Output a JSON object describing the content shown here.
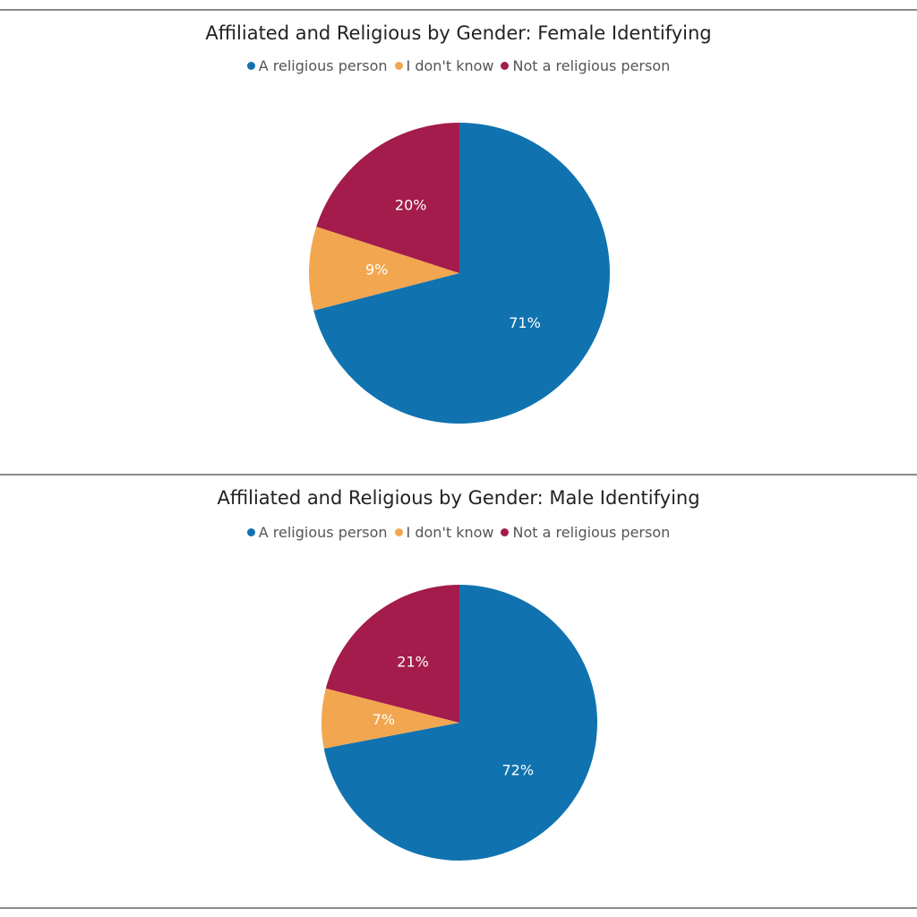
{
  "chart_data": [
    {
      "type": "pie",
      "title": "Affiliated and Religious by Gender: Female Identifying",
      "legend_position": "top",
      "categories": [
        "A religious person",
        "I don't know",
        "Not a religious person"
      ],
      "values": [
        71,
        9,
        20
      ],
      "labels": [
        "71%",
        "9%",
        "20%"
      ],
      "colors": [
        "#1073b0",
        "#f3a650",
        "#a31c4b"
      ]
    },
    {
      "type": "pie",
      "title": "Affiliated and Religious by Gender: Male Identifying",
      "legend_position": "top",
      "categories": [
        "A religious person",
        "I don't know",
        "Not a religious person"
      ],
      "values": [
        72,
        7,
        21
      ],
      "labels": [
        "72%",
        "7%",
        "21%"
      ],
      "colors": [
        "#1073b0",
        "#f3a650",
        "#a31c4b"
      ]
    }
  ]
}
